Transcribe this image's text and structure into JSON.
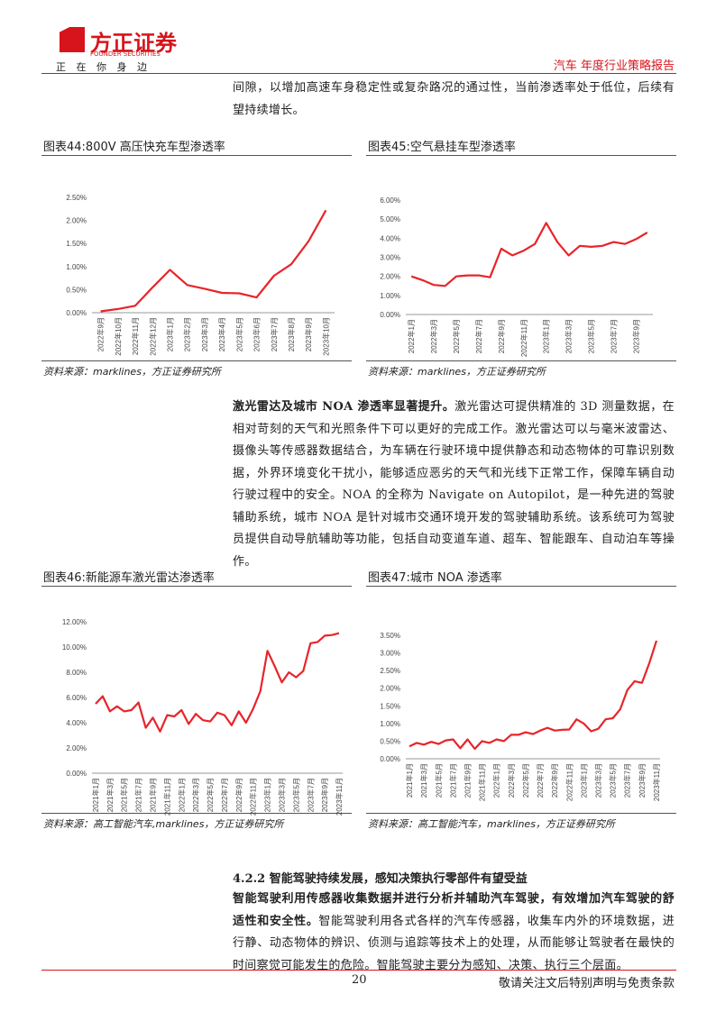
{
  "header": {
    "brand": "方正证券",
    "brand_en": "FOUNDER SECURITIES",
    "slogan": "正 在 你 身 边",
    "report": "汽车 年度行业策略报告"
  },
  "paragraphs": [
    {
      "text": "间隙，以增加高速车身稳定性或复杂路况的通过性，当前渗透率处于低位，后续有望持续增长。"
    },
    {
      "lead": "激光雷达及城市 NOA 渗透率显著提升。",
      "text": "激光雷达可提供精准的 3D 测量数据，在相对苛刻的天气和光照条件下可以更好的完成工作。激光雷达可以与毫米波雷达、摄像头等传感器数据结合，为车辆在行驶环境中提供静态和动态物体的可靠识别数据，外界环境变化干扰小，能够适应恶劣的天气和光线下正常工作，保障车辆自动行驶过程中的安全。NOA 的全称为 Navigate on Autopilot，是一种先进的驾驶辅助系统，城市 NOA 是针对城市交通环境开发的驾驶辅助系统。该系统可为驾驶员提供自动导航辅助等功能，包括自动变道车道、超车、智能跟车、自动泊车等操作。"
    },
    {
      "lead": "智能驾驶利用传感器收集数据并进行分析并辅助汽车驾驶，有效增加汽车驾驶的舒适性和安全性。",
      "text": "智能驾驶利用各式各样的汽车传感器，收集车内外的环境数据，进行静、动态物体的辨识、侦测与追踪等技术上的处理，从而能够让驾驶者在最快的时间察觉可能发生的危险。智能驾驶主要分为感知、决策、执行三个层面。"
    }
  ],
  "section_heading": "4.2.2 智能驾驶持续发展，感知决策执行零部件有望受益",
  "chart_data": [
    {
      "type": "line",
      "title": "图表44:800V 高压快充车型渗透率",
      "source": "资料来源：marklines，方正证券研究所",
      "color": "#e8242a",
      "categories": [
        "2022年9月",
        "2022年10月",
        "2022年11月",
        "2022年12月",
        "2023年1月",
        "2023年2月",
        "2023年3月",
        "2023年4月",
        "2023年5月",
        "2023年6月",
        "2023年7月",
        "2023年8月",
        "2023年9月",
        "2023年10月"
      ],
      "values": [
        0.03,
        0.08,
        0.15,
        0.55,
        0.93,
        0.6,
        0.52,
        0.43,
        0.42,
        0.33,
        0.8,
        1.05,
        1.55,
        2.22
      ],
      "ylim": [
        0,
        2.5
      ],
      "yticks": [
        {
          "value": 0,
          "label": "0.00%"
        },
        {
          "value": 0.5,
          "label": "0.50%"
        },
        {
          "value": 1,
          "label": "1.00%"
        },
        {
          "value": 1.5,
          "label": "1.50%"
        },
        {
          "value": 2,
          "label": "2.00%"
        },
        {
          "value": 2.5,
          "label": "2.50%"
        }
      ]
    },
    {
      "type": "line",
      "title": "图表45:空气悬挂车型渗透率",
      "source": "资料来源：marklines，方正证券研究所",
      "color": "#e8242a",
      "categories": [
        "2022年1月",
        null,
        "2022年3月",
        null,
        "2022年5月",
        null,
        "2022年7月",
        null,
        "2022年9月",
        null,
        "2022年11月",
        null,
        "2023年1月",
        null,
        "2023年3月",
        null,
        "2023年5月",
        null,
        "2023年7月",
        null,
        "2023年9月",
        null
      ],
      "values": [
        2.0,
        1.8,
        1.55,
        1.5,
        2.0,
        2.05,
        2.05,
        1.95,
        3.45,
        3.1,
        3.35,
        3.7,
        4.8,
        3.8,
        3.1,
        3.6,
        3.55,
        3.6,
        3.8,
        3.7,
        3.95,
        4.3
      ],
      "ylim": [
        0,
        6
      ],
      "yticks": [
        {
          "value": 0,
          "label": "0.00%"
        },
        {
          "value": 1,
          "label": "1.00%"
        },
        {
          "value": 2,
          "label": "2.00%"
        },
        {
          "value": 3,
          "label": "3.00%"
        },
        {
          "value": 4,
          "label": "4.00%"
        },
        {
          "value": 5,
          "label": "5.00%"
        },
        {
          "value": 6,
          "label": "6.00%"
        }
      ]
    },
    {
      "type": "line",
      "title": "图表46:新能源车激光雷达渗透率",
      "source": "资料来源：高工智能汽车,marklines，方正证券研究所",
      "color": "#e8242a",
      "categories": [
        "2021年1月",
        null,
        "2021年3月",
        null,
        "2021年5月",
        null,
        "2021年7月",
        null,
        "2021年9月",
        null,
        "2021年11月",
        null,
        "2022年1月",
        null,
        "2022年3月",
        null,
        "2022年5月",
        null,
        "2022年7月",
        null,
        "2022年9月",
        null,
        "2022年11月",
        null,
        "2023年1月",
        null,
        "2023年3月",
        null,
        "2023年5月",
        null,
        "2023年7月",
        null,
        "2023年9月",
        null,
        "2023年11月"
      ],
      "values": [
        5.5,
        6.1,
        4.9,
        5.3,
        4.9,
        5.0,
        5.6,
        3.6,
        4.4,
        3.3,
        4.6,
        4.5,
        5.0,
        3.9,
        4.7,
        4.2,
        4.1,
        4.8,
        4.6,
        3.8,
        4.9,
        4.0,
        5.1,
        6.5,
        9.7,
        8.5,
        7.2,
        8.0,
        7.6,
        8.1,
        10.3,
        10.4,
        10.9,
        10.95,
        11.1
      ],
      "ylim": [
        0,
        12
      ],
      "yticks": [
        {
          "value": 0,
          "label": "0.00%"
        },
        {
          "value": 2,
          "label": "2.00%"
        },
        {
          "value": 4,
          "label": "4.00%"
        },
        {
          "value": 6,
          "label": "6.00%"
        },
        {
          "value": 8,
          "label": "8.00%"
        },
        {
          "value": 10,
          "label": "10.00%"
        },
        {
          "value": 12,
          "label": "12.00%"
        }
      ]
    },
    {
      "type": "line",
      "title": "图表47:城市 NOA 渗透率",
      "source": "资料来源：高工智能汽车，marklines，方正证券研究所",
      "color": "#e8242a",
      "categories": [
        "2021年1月",
        null,
        "2021年3月",
        null,
        "2021年5月",
        null,
        "2021年7月",
        null,
        "2021年9月",
        null,
        "2021年11月",
        null,
        "2022年1月",
        null,
        "2022年3月",
        null,
        "2022年5月",
        null,
        "2022年7月",
        null,
        "2022年9月",
        null,
        "2022年11月",
        null,
        "2023年1月",
        null,
        "2023年3月",
        null,
        "2023年5月",
        null,
        "2023年7月",
        null,
        "2023年9月",
        null,
        "2023年11月"
      ],
      "values": [
        0.35,
        0.45,
        0.4,
        0.48,
        0.42,
        0.52,
        0.55,
        0.3,
        0.55,
        0.28,
        0.5,
        0.45,
        0.55,
        0.5,
        0.68,
        0.68,
        0.75,
        0.7,
        0.8,
        0.88,
        0.8,
        0.82,
        0.83,
        1.12,
        1.0,
        0.78,
        0.85,
        1.12,
        1.15,
        1.4,
        1.95,
        2.2,
        2.15,
        2.7,
        3.35
      ],
      "ylim": [
        0,
        3.5
      ],
      "yticks": [
        {
          "value": 0,
          "label": "0.00%"
        },
        {
          "value": 0.5,
          "label": "0.50%"
        },
        {
          "value": 1,
          "label": "1.00%"
        },
        {
          "value": 1.5,
          "label": "1.50%"
        },
        {
          "value": 2,
          "label": "2.00%"
        },
        {
          "value": 2.5,
          "label": "2.50%"
        },
        {
          "value": 3,
          "label": "3.00%"
        },
        {
          "value": 3.5,
          "label": "3.50%"
        }
      ]
    }
  ],
  "footer": {
    "page": "20",
    "notice": "敬请关注文后特别声明与免责条款"
  }
}
